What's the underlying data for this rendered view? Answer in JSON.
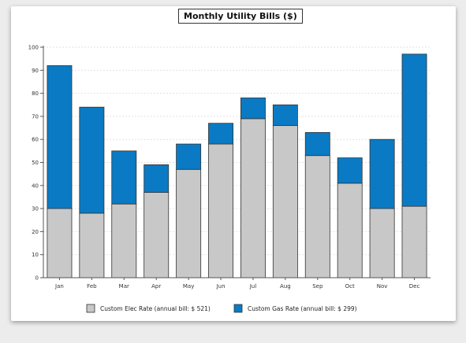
{
  "chart_data": {
    "type": "bar",
    "stacked": true,
    "title": "Monthly Utility Bills ($)",
    "xlabel": "",
    "ylabel": "",
    "ylim": [
      0,
      100
    ],
    "yticks": [
      0,
      10,
      20,
      30,
      40,
      50,
      60,
      70,
      80,
      90,
      100
    ],
    "grid": true,
    "legend_position": "bottom",
    "categories": [
      "Jan",
      "Feb",
      "Mar",
      "Apr",
      "May",
      "Jun",
      "Jul",
      "Aug",
      "Sep",
      "Oct",
      "Nov",
      "Dec"
    ],
    "series": [
      {
        "name": "Custom Elec Rate (annual bill: $ 521)",
        "color": "#c8c8c8",
        "values": [
          30,
          28,
          32,
          37,
          47,
          58,
          69,
          66,
          53,
          41,
          30,
          31
        ]
      },
      {
        "name": "Custom Gas Rate (annual bill: $ 299)",
        "color": "#0a7ac4",
        "values": [
          62,
          46,
          23,
          12,
          11,
          9,
          9,
          9,
          10,
          11,
          30,
          66
        ]
      }
    ]
  }
}
